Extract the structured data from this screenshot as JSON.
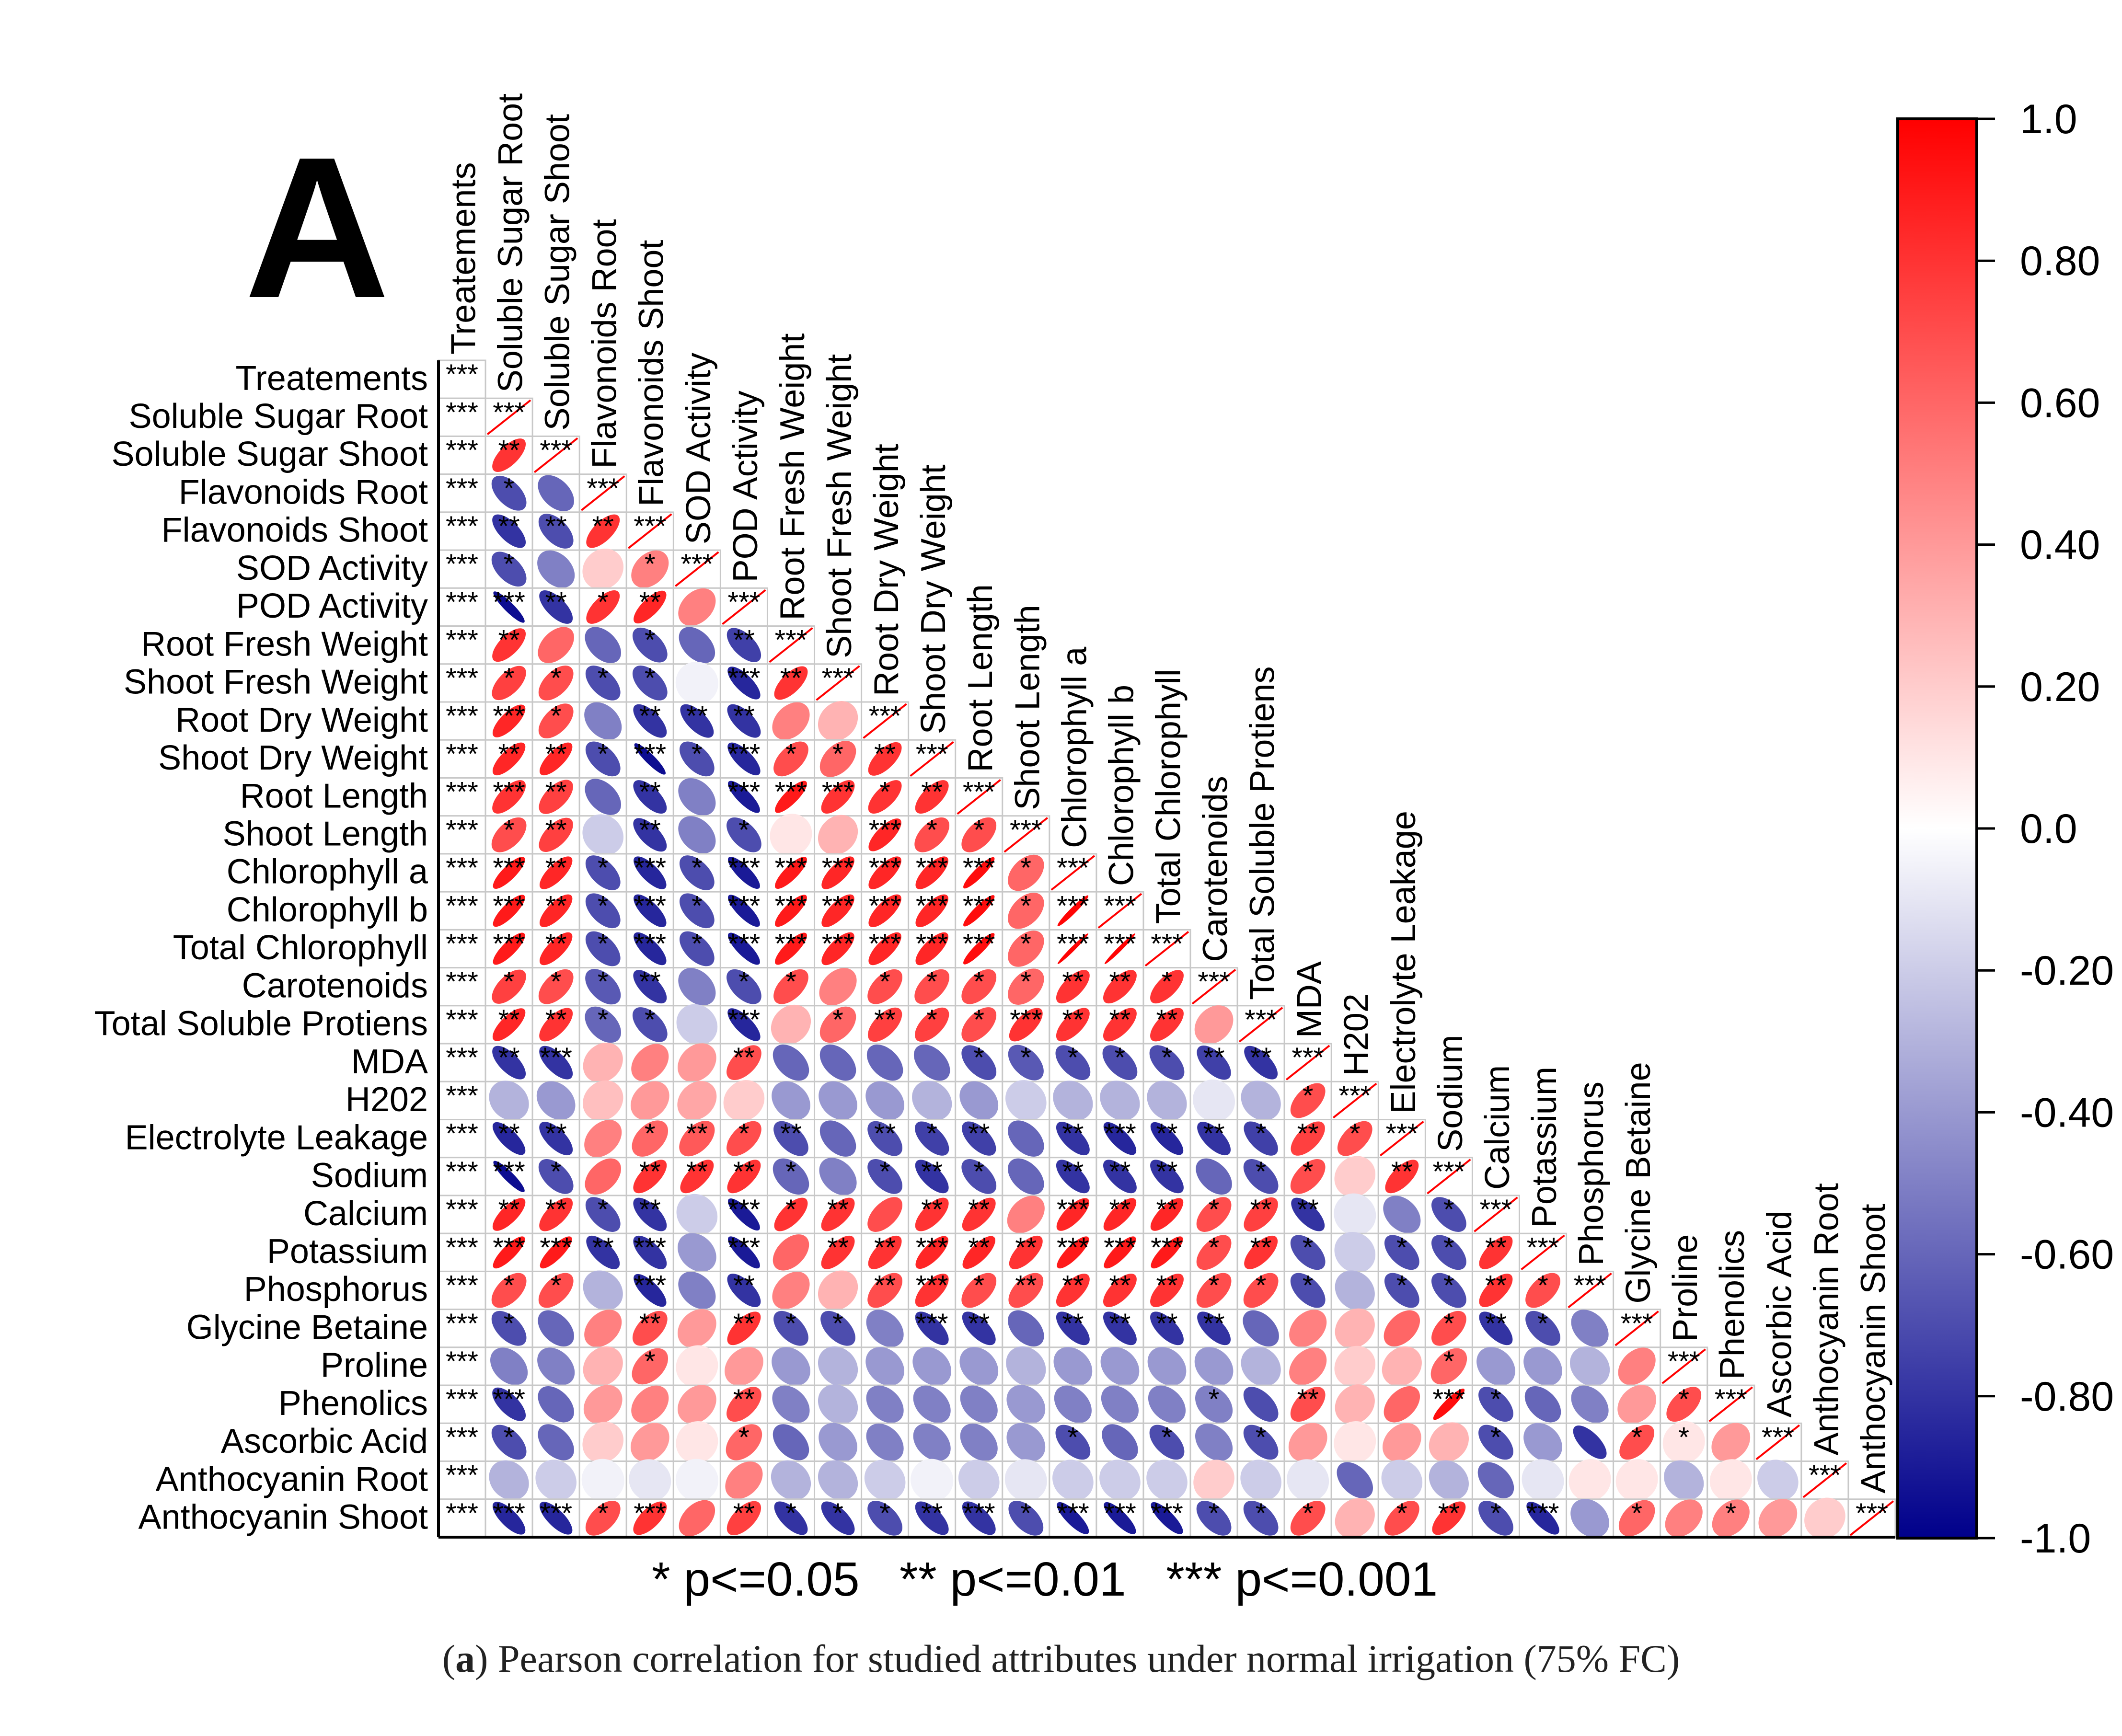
{
  "panel_label": "A",
  "caption": {
    "prefix_open": "(",
    "letter": "a",
    "prefix_close": ")",
    "text": " Pearson correlation for studied attributes under normal irrigation (75% FC)"
  },
  "legend_note": "* p<=0.05   ** p<=0.01   *** p<=0.001",
  "colors": {
    "positive": "#ff0000",
    "neutral": "#ffffff",
    "negative": "#00008b",
    "grid": "#cccccc",
    "frame": "#000000"
  },
  "chart_data": {
    "type": "heatmap",
    "subtype": "correlation-ellipse-lower-triangle",
    "title": "",
    "variables": [
      "Treatements",
      "Soluble Sugar Root",
      "Soluble Sugar Shoot",
      "Flavonoids Root",
      "Flavonoids Shoot",
      "SOD Activity",
      "POD Activity",
      "Root Fresh Weight",
      "Shoot Fresh Weight",
      "Root Dry Weight",
      "Shoot Dry Weight",
      "Root Length",
      "Shoot Length",
      "Chlorophyll a",
      "Chlorophyll b",
      "Total Chlorophyll",
      "Carotenoids",
      "Total Soluble Protiens",
      "MDA",
      "H202",
      "Electrolyte Leakage",
      "Sodium",
      "Calcium",
      "Potassium",
      "Phosphorus",
      "Glycine Betaine",
      "Proline",
      "Phenolics",
      "Ascorbic Acid",
      "Anthocyanin Root",
      "Anthocyanin Shoot"
    ],
    "colorbar": {
      "min": -1.0,
      "max": 1.0,
      "ticks": [
        "1.0",
        "0.80",
        "0.60",
        "0.40",
        "0.20",
        "0.0",
        "-0.20",
        "-0.40",
        "-0.60",
        "-0.80",
        "-1.0"
      ]
    },
    "rows": [
      {
        "stars": [
          "***"
        ],
        "r": []
      },
      {
        "stars": [
          "***",
          "***"
        ],
        "r": [
          1
        ]
      },
      {
        "stars": [
          "***",
          "**",
          "***"
        ],
        "r": [
          0.8,
          1
        ]
      },
      {
        "stars": [
          "***",
          "*",
          "",
          "***"
        ],
        "r": [
          -0.7,
          -0.6,
          1
        ]
      },
      {
        "stars": [
          "***",
          "**",
          "**",
          "**",
          "***"
        ],
        "r": [
          -0.8,
          -0.7,
          0.8,
          1
        ]
      },
      {
        "stars": [
          "***",
          "*",
          "",
          "",
          "*",
          "***"
        ],
        "r": [
          -0.7,
          -0.5,
          0.2,
          0.5,
          1
        ]
      },
      {
        "stars": [
          "***",
          "***",
          "**",
          "*",
          "**",
          "",
          "***"
        ],
        "r": [
          -0.95,
          -0.8,
          0.8,
          0.85,
          0.5,
          1
        ]
      },
      {
        "stars": [
          "***",
          "**",
          "",
          "",
          "*",
          "",
          "**",
          "***"
        ],
        "r": [
          0.8,
          0.6,
          -0.6,
          -0.7,
          -0.6,
          -0.75,
          1
        ]
      },
      {
        "stars": [
          "***",
          "*",
          "*",
          "*",
          "*",
          "",
          "***",
          "**",
          "***"
        ],
        "r": [
          0.75,
          0.7,
          -0.7,
          -0.7,
          -0.05,
          -0.85,
          0.8,
          1
        ]
      },
      {
        "stars": [
          "***",
          "***",
          "*",
          "",
          "**",
          "**",
          "**",
          "",
          "",
          "***"
        ],
        "r": [
          0.85,
          0.7,
          -0.5,
          -0.8,
          -0.8,
          -0.8,
          0.5,
          0.3,
          1
        ]
      },
      {
        "stars": [
          "***",
          "**",
          "**",
          "*",
          "***",
          "*",
          "***",
          "*",
          "*",
          "**",
          "***"
        ],
        "r": [
          0.85,
          0.85,
          -0.7,
          -0.95,
          -0.7,
          -0.85,
          0.7,
          0.6,
          0.8,
          1
        ]
      },
      {
        "stars": [
          "***",
          "***",
          "**",
          "",
          "**",
          "",
          "***",
          "***",
          "***",
          "*",
          "**",
          "***"
        ],
        "r": [
          0.8,
          0.75,
          -0.6,
          -0.8,
          -0.5,
          -0.9,
          0.9,
          0.8,
          0.8,
          0.8,
          1
        ]
      },
      {
        "stars": [
          "***",
          "*",
          "**",
          "",
          "**",
          "",
          "*",
          "",
          "",
          "***",
          "*",
          "*",
          "***"
        ],
        "r": [
          0.7,
          0.75,
          -0.2,
          -0.8,
          -0.5,
          -0.7,
          0.1,
          0.3,
          0.85,
          0.7,
          0.7,
          1
        ]
      },
      {
        "stars": [
          "***",
          "***",
          "**",
          "*",
          "***",
          "*",
          "***",
          "***",
          "***",
          "***",
          "***",
          "***",
          "*",
          "***"
        ],
        "r": [
          0.9,
          0.85,
          -0.7,
          -0.85,
          -0.7,
          -0.9,
          0.9,
          0.85,
          0.85,
          0.85,
          0.95,
          0.6,
          1
        ]
      },
      {
        "stars": [
          "***",
          "***",
          "**",
          "*",
          "***",
          "*",
          "***",
          "***",
          "***",
          "***",
          "***",
          "***",
          "*",
          "***",
          "***"
        ],
        "r": [
          0.9,
          0.85,
          -0.7,
          -0.85,
          -0.7,
          -0.9,
          0.9,
          0.85,
          0.85,
          0.85,
          0.95,
          0.6,
          0.98,
          1
        ]
      },
      {
        "stars": [
          "***",
          "***",
          "**",
          "*",
          "***",
          "*",
          "***",
          "***",
          "***",
          "***",
          "***",
          "***",
          "*",
          "***",
          "***",
          "***"
        ],
        "r": [
          0.9,
          0.85,
          -0.7,
          -0.85,
          -0.7,
          -0.9,
          0.9,
          0.85,
          0.85,
          0.85,
          0.95,
          0.6,
          0.99,
          0.99,
          1
        ]
      },
      {
        "stars": [
          "***",
          "*",
          "*",
          "*",
          "**",
          "",
          "*",
          "*",
          "",
          "*",
          "*",
          "*",
          "*",
          "**",
          "**",
          "*",
          "***"
        ],
        "r": [
          0.75,
          0.7,
          -0.65,
          -0.8,
          -0.5,
          -0.7,
          0.7,
          0.5,
          0.7,
          0.7,
          0.7,
          0.6,
          0.8,
          0.8,
          0.8,
          1
        ]
      },
      {
        "stars": [
          "***",
          "**",
          "**",
          "*",
          "*",
          "",
          "***",
          "",
          "*",
          "**",
          "*",
          "*",
          "***",
          "**",
          "**",
          "**",
          "",
          "***"
        ],
        "r": [
          0.85,
          0.8,
          -0.6,
          -0.7,
          -0.2,
          -0.85,
          0.3,
          0.6,
          0.75,
          0.75,
          0.7,
          0.8,
          0.8,
          0.8,
          0.8,
          0.4,
          1
        ]
      },
      {
        "stars": [
          "***",
          "**",
          "***",
          "",
          "",
          "",
          "**",
          "",
          "",
          "",
          "",
          "*",
          "*",
          "*",
          "*",
          "*",
          "**",
          "**",
          "***"
        ],
        "r": [
          -0.8,
          -0.8,
          0.3,
          0.5,
          0.4,
          0.7,
          -0.6,
          -0.6,
          -0.6,
          -0.6,
          -0.7,
          -0.65,
          -0.7,
          -0.7,
          -0.7,
          -0.75,
          -0.8,
          1
        ]
      },
      {
        "stars": [
          "***",
          "",
          "",
          "",
          "",
          "",
          "",
          "",
          "",
          "",
          "",
          "",
          "",
          "",
          "",
          "",
          "",
          "",
          "*",
          "***"
        ],
        "r": [
          -0.3,
          -0.4,
          0.25,
          0.4,
          0.35,
          0.2,
          -0.4,
          -0.4,
          -0.4,
          -0.3,
          -0.4,
          -0.2,
          -0.3,
          -0.3,
          -0.3,
          -0.1,
          -0.3,
          0.7,
          1
        ]
      },
      {
        "stars": [
          "***",
          "**",
          "**",
          "",
          "*",
          "**",
          "*",
          "**",
          "",
          "**",
          "*",
          "**",
          "",
          "**",
          "***",
          "**",
          "**",
          "*",
          "**",
          "*",
          "***"
        ],
        "r": [
          -0.85,
          -0.8,
          0.5,
          0.6,
          0.65,
          0.7,
          -0.7,
          -0.6,
          -0.7,
          -0.75,
          -0.75,
          -0.6,
          -0.8,
          -0.85,
          -0.85,
          -0.8,
          -0.75,
          0.75,
          0.7,
          1
        ]
      },
      {
        "stars": [
          "***",
          "***",
          "*",
          "",
          "**",
          "**",
          "**",
          "*",
          "",
          "*",
          "**",
          "*",
          "",
          "**",
          "**",
          "**",
          "",
          "*",
          "*",
          "",
          "**",
          "***"
        ],
        "r": [
          -0.95,
          -0.7,
          0.6,
          0.8,
          0.8,
          0.8,
          -0.6,
          -0.5,
          -0.7,
          -0.8,
          -0.7,
          -0.6,
          -0.8,
          -0.8,
          -0.8,
          -0.6,
          -0.7,
          0.7,
          0.2,
          0.8,
          1
        ]
      },
      {
        "stars": [
          "***",
          "**",
          "**",
          "*",
          "**",
          "",
          "***",
          "*",
          "**",
          "",
          "**",
          "**",
          "",
          "***",
          "**",
          "**",
          "*",
          "**",
          "**",
          "",
          "",
          "*",
          "***"
        ],
        "r": [
          0.85,
          0.8,
          -0.7,
          -0.8,
          -0.2,
          -0.9,
          0.8,
          0.8,
          0.7,
          0.8,
          0.8,
          0.5,
          0.85,
          0.85,
          0.85,
          0.7,
          0.75,
          -0.8,
          -0.1,
          -0.5,
          -0.7,
          1
        ]
      },
      {
        "stars": [
          "***",
          "***",
          "***",
          "**",
          "***",
          "",
          "***",
          "",
          "**",
          "**",
          "***",
          "**",
          "**",
          "***",
          "***",
          "***",
          "*",
          "**",
          "*",
          "",
          "*",
          "*",
          "**",
          "***"
        ],
        "r": [
          0.9,
          0.9,
          -0.8,
          -0.8,
          -0.4,
          -0.9,
          0.6,
          0.8,
          0.8,
          0.85,
          0.85,
          0.8,
          0.9,
          0.9,
          0.9,
          0.7,
          0.8,
          -0.7,
          -0.2,
          -0.7,
          -0.7,
          0.8,
          1
        ]
      },
      {
        "stars": [
          "***",
          "*",
          "*",
          "",
          "***",
          "",
          "**",
          "",
          "",
          "**",
          "***",
          "*",
          "**",
          "**",
          "**",
          "**",
          "*",
          "*",
          "*",
          "",
          "*",
          "*",
          "**",
          "*",
          "***"
        ],
        "r": [
          0.7,
          0.7,
          -0.3,
          -0.85,
          -0.5,
          -0.8,
          0.5,
          0.3,
          0.7,
          0.8,
          0.7,
          0.7,
          0.8,
          0.8,
          0.8,
          0.7,
          0.7,
          -0.7,
          -0.3,
          -0.7,
          -0.7,
          0.8,
          0.7,
          1
        ]
      },
      {
        "stars": [
          "***",
          "*",
          "",
          "",
          "**",
          "",
          "**",
          "*",
          "*",
          "",
          "***",
          "**",
          "",
          "**",
          "**",
          "**",
          "**",
          "",
          "",
          "",
          "",
          "*",
          "**",
          "*",
          "",
          "***"
        ],
        "r": [
          -0.7,
          -0.6,
          0.5,
          0.7,
          0.4,
          0.8,
          -0.7,
          -0.7,
          -0.5,
          -0.8,
          -0.8,
          -0.6,
          -0.8,
          -0.8,
          -0.8,
          -0.8,
          -0.6,
          0.5,
          0.3,
          0.6,
          0.7,
          -0.8,
          -0.7,
          -0.5,
          1
        ]
      },
      {
        "stars": [
          "***",
          "",
          "",
          "",
          "*",
          "",
          "",
          "",
          "",
          "",
          "",
          "",
          "",
          "",
          "",
          "",
          "",
          "",
          "",
          "",
          "",
          "*",
          "",
          "",
          "",
          "",
          "***"
        ],
        "r": [
          -0.5,
          -0.5,
          0.3,
          0.6,
          0.1,
          0.4,
          -0.4,
          -0.3,
          -0.4,
          -0.4,
          -0.4,
          -0.3,
          -0.4,
          -0.4,
          -0.4,
          -0.4,
          -0.3,
          0.5,
          0.2,
          0.3,
          0.6,
          -0.4,
          -0.4,
          -0.3,
          0.5,
          1
        ]
      },
      {
        "stars": [
          "***",
          "***",
          "",
          "",
          "",
          "",
          "**",
          "",
          "",
          "",
          "",
          "",
          "",
          "",
          "",
          "",
          "*",
          "",
          "**",
          "",
          "",
          "***",
          "*",
          "",
          "",
          "",
          "*",
          "***"
        ],
        "r": [
          -0.8,
          -0.6,
          0.4,
          0.5,
          0.4,
          0.7,
          -0.5,
          -0.3,
          -0.5,
          -0.5,
          -0.5,
          -0.4,
          -0.5,
          -0.5,
          -0.5,
          -0.5,
          -0.7,
          0.7,
          0.3,
          0.6,
          0.95,
          -0.7,
          -0.6,
          -0.5,
          0.4,
          0.7,
          1
        ]
      },
      {
        "stars": [
          "***",
          "*",
          "",
          "",
          "",
          "",
          "*",
          "",
          "",
          "",
          "",
          "",
          "",
          "*",
          "",
          "*",
          "",
          "*",
          "",
          "",
          "",
          "",
          "*",
          "",
          "",
          "*",
          "*",
          "",
          "***"
        ],
        "r": [
          -0.7,
          -0.6,
          0.2,
          0.4,
          0.1,
          0.6,
          -0.6,
          -0.4,
          -0.5,
          -0.5,
          -0.5,
          -0.4,
          -0.7,
          -0.6,
          -0.7,
          -0.5,
          -0.7,
          0.4,
          0.1,
          0.4,
          0.3,
          -0.7,
          -0.4,
          -0.8,
          0.7,
          0.1,
          0.4,
          1
        ]
      },
      {
        "stars": [
          "***",
          "",
          "",
          "",
          "",
          "",
          "",
          "",
          "",
          "",
          "",
          "",
          "",
          "",
          "",
          "",
          "",
          "",
          "",
          "",
          "",
          "",
          "",
          "",
          "",
          "",
          "",
          "",
          "",
          "***"
        ],
        "r": [
          -0.3,
          -0.2,
          -0.05,
          -0.1,
          -0.05,
          0.5,
          -0.3,
          -0.3,
          -0.2,
          -0.05,
          -0.2,
          -0.1,
          -0.2,
          -0.2,
          -0.2,
          0.2,
          -0.2,
          -0.1,
          -0.6,
          -0.2,
          -0.3,
          -0.6,
          -0.1,
          0.1,
          0.1,
          -0.3,
          0.1,
          -0.2,
          0.3,
          1
        ]
      },
      {
        "stars": [
          "***",
          "***",
          "***",
          "*",
          "***",
          "",
          "**",
          "*",
          "*",
          "*",
          "**",
          "***",
          "*",
          "***",
          "***",
          "***",
          "*",
          "*",
          "*",
          "",
          "*",
          "**",
          "*",
          "***",
          "",
          "*",
          "",
          "*",
          "",
          "",
          "***"
        ],
        "r": [
          -0.85,
          -0.85,
          0.7,
          0.8,
          0.6,
          0.75,
          -0.8,
          -0.8,
          -0.7,
          -0.8,
          -0.8,
          -0.7,
          -0.9,
          -0.9,
          -0.9,
          -0.7,
          -0.7,
          0.7,
          0.3,
          0.7,
          0.8,
          -0.7,
          -0.85,
          -0.4,
          0.6,
          0.5,
          0.5,
          0.4,
          0.2,
          1
        ]
      }
    ]
  }
}
